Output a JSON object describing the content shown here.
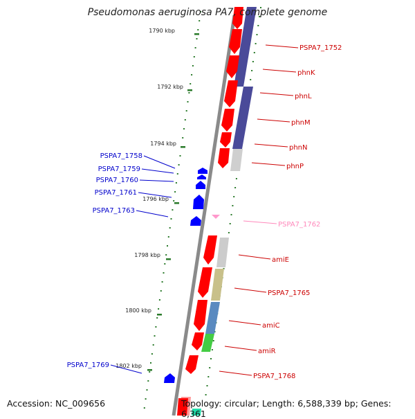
{
  "title": "Pseudomonas aeruginosa PA7, complete genome",
  "footer": {
    "accession": "Accession: NC_009656",
    "topology": "Topology: circular; Length: 6,588,339 bp; Genes: 6,361"
  },
  "colors": {
    "forward_gene": "#ff0000",
    "reverse_gene": "#0000ff",
    "rna_gene": "#ff99cc",
    "backbone": "#888888",
    "tick": "#2a7a2a",
    "label_red": "#cc0000",
    "label_blue": "#0000cc",
    "label_pink": "#ff88bb"
  },
  "scale_labels": [
    "1790 kbp",
    "1792 kbp",
    "1794 kbp",
    "1796 kbp",
    "1798 kbp",
    "1800 kbp",
    "1802 kbp"
  ],
  "forward_gene_labels": [
    "PSPA7_1752",
    "phnK",
    "phnL",
    "phnM",
    "phnN",
    "phnP",
    "amiE",
    "PSPA7_1765",
    "amiC",
    "amiR",
    "PSPA7_1768"
  ],
  "rna_gene_labels": [
    "PSPA7_1762"
  ],
  "reverse_gene_labels": [
    "PSPA7_1758",
    "PSPA7_1759",
    "PSPA7_1760",
    "PSPA7_1761",
    "PSPA7_1763",
    "PSPA7_1769"
  ]
}
